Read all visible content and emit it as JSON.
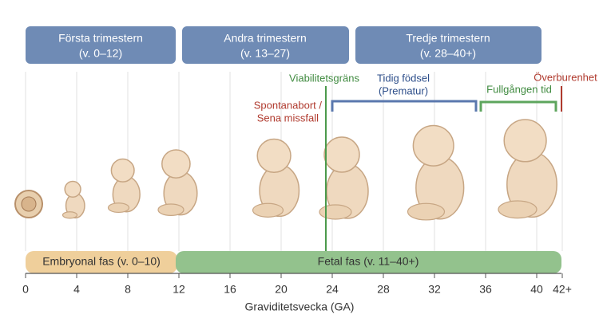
{
  "trimesters": [
    {
      "title": "Första trimestern",
      "range": "(v. 0–12)"
    },
    {
      "title": "Andra trimestern",
      "range": "(v. 13–27)"
    },
    {
      "title": "Tredje trimestern",
      "range": "(v. 28–40+)"
    }
  ],
  "phases": [
    {
      "label": "Embryonal fas (v. 0–10)"
    },
    {
      "label": "Fetal fas (v. 11–40+)"
    }
  ],
  "annotations": {
    "viability": "Viabilitetsgräns",
    "miscarriage": [
      "Spontanabort /",
      "Sena missfall"
    ],
    "preterm": [
      "Tidig födsel",
      "(Prematur)"
    ],
    "term": "Fullgången tid",
    "postterm": "Överburenhet"
  },
  "axis": {
    "title": "Graviditetsvecka (GA)",
    "ticks": [
      0,
      4,
      8,
      12,
      16,
      20,
      24,
      28,
      32,
      36,
      40,
      {
        "value": 42,
        "label": "42+"
      }
    ]
  }
}
